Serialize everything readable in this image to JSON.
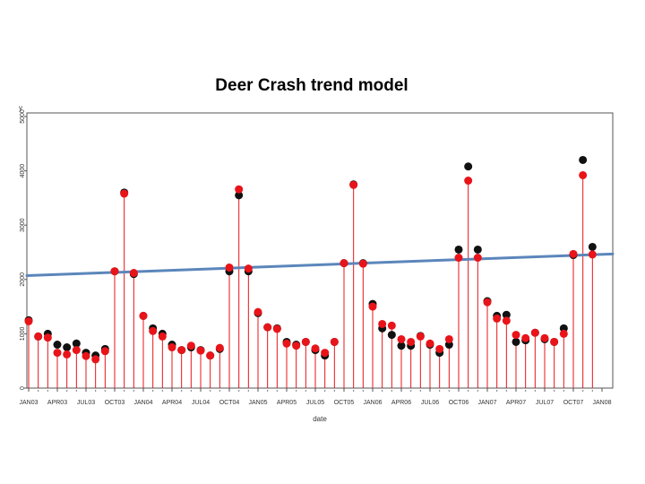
{
  "chart_data": {
    "type": "scatter",
    "title": "Deer Crash trend model",
    "xlabel": "date",
    "ylabel": "y",
    "ylim": [
      0,
      5000
    ],
    "yticks": [
      0,
      1000,
      2000,
      3000,
      4000,
      5000
    ],
    "xticks": [
      "JAN03",
      "APR03",
      "JUL03",
      "OCT03",
      "JAN04",
      "APR04",
      "JUL04",
      "OCT04",
      "JAN05",
      "APR05",
      "JUL05",
      "OCT05",
      "JAN06",
      "APR06",
      "JUL06",
      "OCT06",
      "JAN07",
      "APR07",
      "JUL07",
      "OCT07",
      "JAN08"
    ],
    "colors": {
      "observed": "#111111",
      "predicted": "#e8141a",
      "trend": "#5b86bb",
      "needle": "#e8141a"
    },
    "x": [
      "JAN03",
      "FEB03",
      "MAR03",
      "APR03",
      "MAY03",
      "JUN03",
      "JUL03",
      "AUG03",
      "SEP03",
      "OCT03",
      "NOV03",
      "DEC03",
      "JAN04",
      "FEB04",
      "MAR04",
      "APR04",
      "MAY04",
      "JUN04",
      "JUL04",
      "AUG04",
      "SEP04",
      "OCT04",
      "NOV04",
      "DEC04",
      "JAN05",
      "FEB05",
      "MAR05",
      "APR05",
      "MAY05",
      "JUN05",
      "JUL05",
      "AUG05",
      "SEP05",
      "OCT05",
      "NOV05",
      "DEC05",
      "JAN06",
      "FEB06",
      "MAR06",
      "APR06",
      "MAY06",
      "JUN06",
      "JUL06",
      "AUG06",
      "SEP06",
      "OCT06",
      "NOV06",
      "DEC06",
      "JAN07",
      "FEB07",
      "MAR07",
      "APR07",
      "MAY07",
      "JUN07",
      "JUL07",
      "AUG07",
      "SEP07",
      "OCT07",
      "NOV07",
      "DEC07"
    ],
    "series": [
      {
        "values": [
          1250,
          950,
          1000,
          800,
          750,
          820,
          650,
          600,
          720,
          2150,
          3600,
          2100,
          1330,
          1100,
          1000,
          800,
          700,
          750,
          700,
          600,
          720,
          2150,
          3550,
          2150,
          1380,
          1120,
          1100,
          850,
          800,
          850,
          700,
          600,
          850,
          2300,
          3750,
          2300,
          1550,
          1100,
          980,
          780,
          780,
          960,
          800,
          650,
          800,
          2550,
          4080,
          2550,
          1600,
          1330,
          1350,
          850,
          880,
          1020,
          900,
          850,
          1100,
          2450,
          4200,
          2600
        ]
      },
      {
        "values": [
          1230,
          950,
          930,
          650,
          620,
          700,
          590,
          530,
          680,
          2150,
          3580,
          2120,
          1330,
          1050,
          950,
          750,
          700,
          780,
          690,
          600,
          740,
          2220,
          3660,
          2200,
          1400,
          1120,
          1090,
          820,
          780,
          850,
          730,
          650,
          850,
          2300,
          3740,
          2290,
          1500,
          1180,
          1150,
          900,
          850,
          950,
          820,
          720,
          900,
          2400,
          3820,
          2400,
          1580,
          1280,
          1240,
          980,
          920,
          1020,
          920,
          850,
          1000,
          2470,
          3920,
          2460
        ]
      }
    ],
    "trend_line": {
      "from": 2070,
      "to": 2470
    }
  }
}
